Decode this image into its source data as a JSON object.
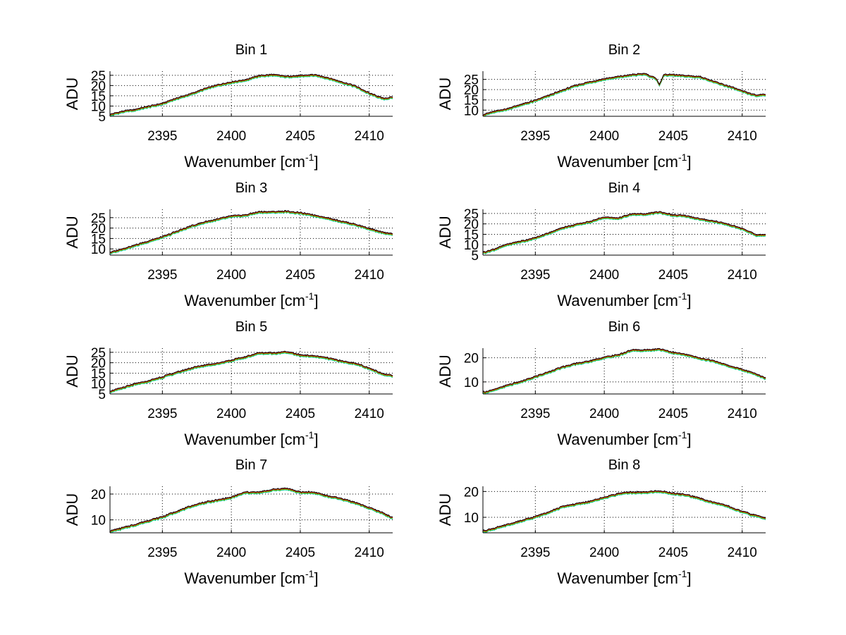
{
  "figure": {
    "background": "#ffffff",
    "line_colors": [
      "#00c8c8",
      "#00b000",
      "#e8c400",
      "#d00000",
      "#000000"
    ]
  },
  "chart_data": [
    {
      "type": "line",
      "title": "Bin 1",
      "xlabel": "Wavenumber [cm",
      "xlabel_sup": "-1",
      "xlabel_end": "]",
      "ylabel": "ADU",
      "xlim": [
        2391.2,
        2411.7
      ],
      "ylim": [
        5,
        27
      ],
      "xticks": [
        2395,
        2400,
        2405,
        2410
      ],
      "yticks": [
        5,
        10,
        15,
        20,
        25
      ],
      "grid": true,
      "x": [
        2391.2,
        2392,
        2393,
        2394,
        2395,
        2396,
        2397,
        2398,
        2399,
        2400,
        2401,
        2402,
        2403,
        2404,
        2405,
        2406,
        2407,
        2408,
        2409,
        2410,
        2411,
        2411.7
      ],
      "y": [
        5.5,
        7,
        8,
        9.5,
        11,
        13.5,
        15.5,
        18,
        20,
        21.5,
        22.5,
        24.5,
        25,
        24.2,
        24.5,
        25,
        23.5,
        21.5,
        19.5,
        16,
        13.5,
        14
      ]
    },
    {
      "type": "line",
      "title": "Bin 2",
      "xlabel": "Wavenumber [cm",
      "xlabel_sup": "-1",
      "xlabel_end": "]",
      "ylabel": "ADU",
      "xlim": [
        2391.2,
        2411.7
      ],
      "ylim": [
        7,
        29
      ],
      "xticks": [
        2395,
        2400,
        2405,
        2410
      ],
      "yticks": [
        10,
        15,
        20,
        25
      ],
      "grid": true,
      "x": [
        2391.2,
        2392,
        2393,
        2394,
        2395,
        2396,
        2397,
        2398,
        2399,
        2400,
        2401,
        2402,
        2403,
        2403.8,
        2404,
        2404.3,
        2405,
        2406,
        2407,
        2408,
        2409,
        2410,
        2411,
        2411.7
      ],
      "y": [
        7.5,
        9,
        10.5,
        12.5,
        14.5,
        17,
        19.5,
        22,
        23.5,
        25,
        26,
        27,
        27.5,
        25,
        22,
        27,
        27,
        26.5,
        26,
        23.5,
        21.5,
        19,
        17,
        17.5
      ]
    },
    {
      "type": "line",
      "title": "Bin 3",
      "xlabel": "Wavenumber [cm",
      "xlabel_sup": "-1",
      "xlabel_end": "]",
      "ylabel": "ADU",
      "xlim": [
        2391.2,
        2411.7
      ],
      "ylim": [
        7,
        29
      ],
      "xticks": [
        2395,
        2400,
        2405,
        2410
      ],
      "yticks": [
        10,
        15,
        20,
        25
      ],
      "grid": true,
      "x": [
        2391.2,
        2392,
        2393,
        2394,
        2395,
        2396,
        2397,
        2398,
        2399,
        2400,
        2401,
        2402,
        2403,
        2404,
        2405,
        2406,
        2407,
        2408,
        2409,
        2410,
        2411,
        2411.7
      ],
      "y": [
        8,
        9.5,
        11.5,
        13.5,
        15.5,
        18,
        20.5,
        22.5,
        24,
        25.5,
        26,
        27.5,
        27.5,
        27.8,
        27,
        26,
        24.5,
        23,
        21.5,
        19.5,
        17.5,
        17
      ]
    },
    {
      "type": "line",
      "title": "Bin 4",
      "xlabel": "Wavenumber [cm",
      "xlabel_sup": "-1",
      "xlabel_end": "]",
      "ylabel": "ADU",
      "xlim": [
        2391.2,
        2411.7
      ],
      "ylim": [
        5,
        27
      ],
      "xticks": [
        2395,
        2400,
        2405,
        2410
      ],
      "yticks": [
        5,
        10,
        15,
        20,
        25
      ],
      "grid": true,
      "x": [
        2391.2,
        2392,
        2393,
        2394,
        2395,
        2396,
        2397,
        2398,
        2399,
        2400,
        2401,
        2402,
        2403,
        2404,
        2405,
        2406,
        2407,
        2408,
        2409,
        2410,
        2411,
        2411.7
      ],
      "y": [
        6,
        7.5,
        10,
        11.5,
        13,
        15.5,
        18,
        19.5,
        21,
        23,
        22.5,
        24.5,
        24.5,
        25.5,
        24,
        23.5,
        22,
        21,
        19.5,
        17.5,
        14.5,
        14.5
      ]
    },
    {
      "type": "line",
      "title": "Bin 5",
      "xlabel": "Wavenumber [cm",
      "xlabel_sup": "-1",
      "xlabel_end": "]",
      "ylabel": "ADU",
      "xlim": [
        2391.2,
        2411.7
      ],
      "ylim": [
        5,
        27
      ],
      "xticks": [
        2395,
        2400,
        2405,
        2410
      ],
      "yticks": [
        5,
        10,
        15,
        20,
        25
      ],
      "grid": true,
      "x": [
        2391.2,
        2392,
        2393,
        2394,
        2395,
        2396,
        2397,
        2398,
        2399,
        2400,
        2401,
        2402,
        2403,
        2404,
        2405,
        2406,
        2407,
        2408,
        2409,
        2410,
        2411,
        2411.7
      ],
      "y": [
        6,
        7.5,
        9.5,
        11,
        13,
        15,
        17,
        18.5,
        19.5,
        21,
        22.5,
        24.5,
        24.5,
        25,
        23.5,
        23,
        22,
        20.5,
        19.5,
        17,
        14.5,
        13.5
      ]
    },
    {
      "type": "line",
      "title": "Bin 6",
      "xlabel": "Wavenumber [cm",
      "xlabel_sup": "-1",
      "xlabel_end": "]",
      "ylabel": "ADU",
      "xlim": [
        2391.2,
        2411.7
      ],
      "ylim": [
        5,
        24
      ],
      "xticks": [
        2395,
        2400,
        2405,
        2410
      ],
      "yticks": [
        10,
        20
      ],
      "grid": true,
      "x": [
        2391.2,
        2392,
        2393,
        2394,
        2395,
        2396,
        2397,
        2398,
        2399,
        2400,
        2401,
        2402,
        2403,
        2404,
        2405,
        2406,
        2407,
        2408,
        2409,
        2410,
        2411,
        2411.7
      ],
      "y": [
        5.5,
        6.5,
        8.5,
        10,
        12,
        14,
        16,
        17.5,
        18.5,
        20,
        21,
        23,
        23,
        23.5,
        22,
        21,
        19.5,
        18.5,
        16.5,
        15,
        13,
        11.5
      ]
    },
    {
      "type": "line",
      "title": "Bin 7",
      "xlabel": "Wavenumber [cm",
      "xlabel_sup": "-1",
      "xlabel_end": "]",
      "ylabel": "ADU",
      "xlim": [
        2391.2,
        2411.7
      ],
      "ylim": [
        5,
        23
      ],
      "xticks": [
        2395,
        2400,
        2405,
        2410
      ],
      "yticks": [
        10,
        20
      ],
      "grid": true,
      "x": [
        2391.2,
        2392,
        2393,
        2394,
        2395,
        2396,
        2397,
        2398,
        2399,
        2400,
        2401,
        2402,
        2403,
        2404,
        2405,
        2406,
        2407,
        2408,
        2409,
        2410,
        2411,
        2411.7
      ],
      "y": [
        5.5,
        6.5,
        8,
        9.5,
        11,
        13,
        15,
        16.5,
        17.5,
        18.5,
        20.5,
        20.5,
        21.5,
        22,
        20.5,
        20.5,
        19,
        18,
        16.5,
        14.5,
        12.5,
        10.5
      ]
    },
    {
      "type": "line",
      "title": "Bin 8",
      "xlabel": "Wavenumber [cm",
      "xlabel_sup": "-1",
      "xlabel_end": "]",
      "ylabel": "ADU",
      "xlim": [
        2391.2,
        2411.7
      ],
      "ylim": [
        4,
        22
      ],
      "xticks": [
        2395,
        2400,
        2405,
        2410
      ],
      "yticks": [
        10,
        20
      ],
      "grid": true,
      "x": [
        2391.2,
        2392,
        2393,
        2394,
        2395,
        2396,
        2397,
        2398,
        2399,
        2400,
        2401,
        2402,
        2403,
        2404,
        2405,
        2406,
        2407,
        2408,
        2409,
        2410,
        2411,
        2411.7
      ],
      "y": [
        4.5,
        5.5,
        7,
        8.5,
        10,
        12,
        14,
        15,
        16,
        17.5,
        19,
        19.5,
        19.5,
        20,
        19,
        18.5,
        17,
        15.5,
        14,
        12,
        10.5,
        9.5
      ]
    }
  ]
}
